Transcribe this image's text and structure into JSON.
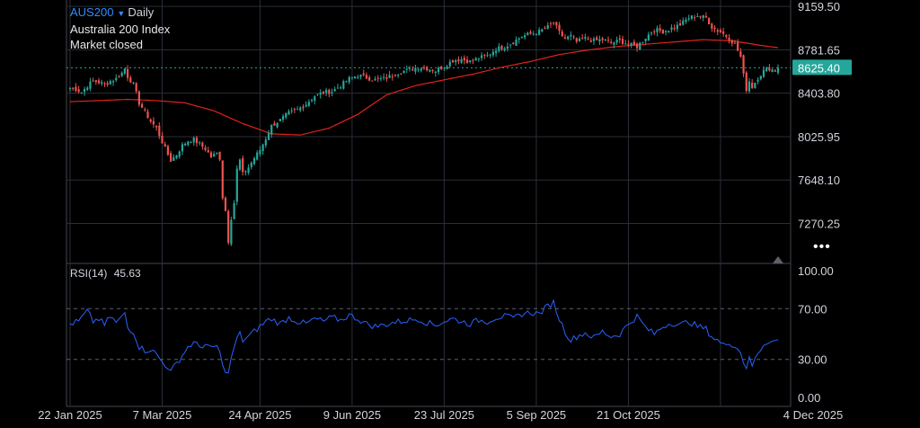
{
  "header": {
    "symbol": "AUS200",
    "timeframe": "Daily",
    "name": "Australia 200 Index",
    "status": "Market closed"
  },
  "rsi": {
    "label": "RSI(14)",
    "value": "45.63"
  },
  "colors": {
    "background": "#000000",
    "up": "#26a69a",
    "down": "#ef5350",
    "ma": "#e0231c",
    "rsi": "#2962ff",
    "price_tag": "#26a69a",
    "grid": "#2a2e39"
  },
  "icons": {
    "more": "more-dots-icon"
  },
  "chart_data": [
    {
      "type": "candlestick",
      "title": "",
      "y_ticks": [
        "9159.50",
        "8781.65",
        "8403.80",
        "8025.95",
        "7648.10",
        "7270.25"
      ],
      "ylim": [
        6930,
        9215
      ],
      "last_price": "8625.40",
      "last_price_value": 8625.4,
      "x_labels": [
        "22 Jan 2025",
        "7 Mar 2025",
        "24 Apr 2025",
        "9 Jun 2025",
        "23 Jul 2025",
        "5 Sep 2025",
        "21 Oct 2025",
        "4 Dec 2025"
      ],
      "close_anchors": [
        [
          0,
          8450
        ],
        [
          2,
          8440
        ],
        [
          4,
          8410
        ],
        [
          6,
          8470
        ],
        [
          8,
          8510
        ],
        [
          10,
          8500
        ],
        [
          12,
          8480
        ],
        [
          14,
          8510
        ],
        [
          16,
          8530
        ],
        [
          18,
          8580
        ],
        [
          19,
          8620
        ],
        [
          20,
          8550
        ],
        [
          22,
          8480
        ],
        [
          24,
          8320
        ],
        [
          26,
          8240
        ],
        [
          28,
          8160
        ],
        [
          30,
          8100
        ],
        [
          33,
          7920
        ],
        [
          35,
          7820
        ],
        [
          37,
          7870
        ],
        [
          39,
          7950
        ],
        [
          41,
          7990
        ],
        [
          43,
          8000
        ],
        [
          45,
          7960
        ],
        [
          47,
          7920
        ],
        [
          49,
          7850
        ],
        [
          51,
          7880
        ],
        [
          52,
          7840
        ],
        [
          53,
          7500
        ],
        [
          54,
          7380
        ],
        [
          55,
          7120
        ],
        [
          56,
          7320
        ],
        [
          57,
          7450
        ],
        [
          58,
          7740
        ],
        [
          59,
          7820
        ],
        [
          60,
          7700
        ],
        [
          62,
          7760
        ],
        [
          64,
          7840
        ],
        [
          66,
          7910
        ],
        [
          68,
          8010
        ],
        [
          70,
          8120
        ],
        [
          73,
          8170
        ],
        [
          76,
          8230
        ],
        [
          79,
          8260
        ],
        [
          82,
          8310
        ],
        [
          85,
          8380
        ],
        [
          88,
          8410
        ],
        [
          91,
          8420
        ],
        [
          94,
          8470
        ],
        [
          97,
          8530
        ],
        [
          100,
          8560
        ],
        [
          103,
          8540
        ],
        [
          106,
          8520
        ],
        [
          109,
          8530
        ],
        [
          112,
          8560
        ],
        [
          115,
          8590
        ],
        [
          118,
          8610
        ],
        [
          121,
          8630
        ],
        [
          124,
          8620
        ],
        [
          127,
          8600
        ],
        [
          130,
          8640
        ],
        [
          133,
          8690
        ],
        [
          136,
          8700
        ],
        [
          139,
          8680
        ],
        [
          142,
          8710
        ],
        [
          145,
          8730
        ],
        [
          148,
          8790
        ],
        [
          151,
          8810
        ],
        [
          154,
          8850
        ],
        [
          157,
          8900
        ],
        [
          160,
          8920
        ],
        [
          163,
          8940
        ],
        [
          166,
          8980
        ],
        [
          168,
          9020
        ],
        [
          170,
          8930
        ],
        [
          172,
          8880
        ],
        [
          174,
          8900
        ],
        [
          176,
          8850
        ],
        [
          179,
          8880
        ],
        [
          182,
          8860
        ],
        [
          185,
          8870
        ],
        [
          188,
          8840
        ],
        [
          191,
          8860
        ],
        [
          194,
          8830
        ],
        [
          197,
          8810
        ],
        [
          200,
          8890
        ],
        [
          203,
          8960
        ],
        [
          206,
          8940
        ],
        [
          209,
          8970
        ],
        [
          212,
          9000
        ],
        [
          215,
          9060
        ],
        [
          218,
          9080
        ],
        [
          221,
          9060
        ],
        [
          223,
          8980
        ],
        [
          225,
          8950
        ],
        [
          227,
          8920
        ],
        [
          229,
          8880
        ],
        [
          231,
          8830
        ],
        [
          233,
          8720
        ],
        [
          234,
          8560
        ],
        [
          235,
          8440
        ],
        [
          236,
          8510
        ],
        [
          237,
          8460
        ],
        [
          239,
          8540
        ],
        [
          241,
          8600
        ],
        [
          243,
          8620
        ],
        [
          245,
          8600
        ],
        [
          246,
          8625
        ]
      ],
      "ma_anchors": [
        [
          0,
          8330
        ],
        [
          20,
          8350
        ],
        [
          30,
          8340
        ],
        [
          40,
          8320
        ],
        [
          50,
          8250
        ],
        [
          60,
          8140
        ],
        [
          70,
          8050
        ],
        [
          80,
          8040
        ],
        [
          90,
          8100
        ],
        [
          100,
          8220
        ],
        [
          110,
          8390
        ],
        [
          120,
          8470
        ],
        [
          130,
          8520
        ],
        [
          140,
          8570
        ],
        [
          150,
          8630
        ],
        [
          160,
          8680
        ],
        [
          170,
          8740
        ],
        [
          180,
          8780
        ],
        [
          190,
          8810
        ],
        [
          200,
          8830
        ],
        [
          210,
          8850
        ],
        [
          220,
          8870
        ],
        [
          230,
          8860
        ],
        [
          240,
          8820
        ],
        [
          246,
          8800
        ]
      ],
      "bar_count": 247
    },
    {
      "type": "line",
      "title": "",
      "series": [
        {
          "name": "RSI(14)"
        }
      ],
      "y_ticks": [
        "100.00",
        "70.00",
        "30.00",
        "0.00"
      ],
      "ylim": [
        0,
        100
      ],
      "levels": [
        70,
        30
      ],
      "rsi_anchors": [
        [
          0,
          58
        ],
        [
          3,
          60
        ],
        [
          6,
          68
        ],
        [
          8,
          60
        ],
        [
          10,
          62
        ],
        [
          12,
          57
        ],
        [
          14,
          64
        ],
        [
          16,
          59
        ],
        [
          18,
          63
        ],
        [
          19,
          67
        ],
        [
          20,
          55
        ],
        [
          22,
          52
        ],
        [
          24,
          40
        ],
        [
          26,
          37
        ],
        [
          28,
          38
        ],
        [
          30,
          34
        ],
        [
          32,
          28
        ],
        [
          34,
          24
        ],
        [
          35,
          20
        ],
        [
          37,
          27
        ],
        [
          39,
          33
        ],
        [
          41,
          40
        ],
        [
          43,
          43
        ],
        [
          45,
          40
        ],
        [
          47,
          42
        ],
        [
          49,
          38
        ],
        [
          51,
          41
        ],
        [
          52,
          35
        ],
        [
          53,
          24
        ],
        [
          54,
          22
        ],
        [
          55,
          18
        ],
        [
          56,
          32
        ],
        [
          57,
          38
        ],
        [
          58,
          47
        ],
        [
          59,
          50
        ],
        [
          60,
          45
        ],
        [
          62,
          48
        ],
        [
          64,
          52
        ],
        [
          66,
          56
        ],
        [
          68,
          60
        ],
        [
          70,
          62
        ],
        [
          73,
          58
        ],
        [
          76,
          63
        ],
        [
          79,
          60
        ],
        [
          82,
          58
        ],
        [
          85,
          62
        ],
        [
          88,
          60
        ],
        [
          91,
          63
        ],
        [
          94,
          61
        ],
        [
          97,
          65
        ],
        [
          100,
          62
        ],
        [
          103,
          58
        ],
        [
          106,
          56
        ],
        [
          109,
          57
        ],
        [
          112,
          59
        ],
        [
          115,
          60
        ],
        [
          118,
          61
        ],
        [
          121,
          62
        ],
        [
          124,
          59
        ],
        [
          127,
          57
        ],
        [
          130,
          60
        ],
        [
          133,
          62
        ],
        [
          136,
          60
        ],
        [
          139,
          58
        ],
        [
          142,
          61
        ],
        [
          145,
          60
        ],
        [
          148,
          63
        ],
        [
          151,
          64
        ],
        [
          154,
          62
        ],
        [
          157,
          66
        ],
        [
          160,
          67
        ],
        [
          163,
          66
        ],
        [
          166,
          72
        ],
        [
          168,
          75
        ],
        [
          170,
          62
        ],
        [
          172,
          52
        ],
        [
          174,
          45
        ],
        [
          176,
          48
        ],
        [
          179,
          51
        ],
        [
          182,
          47
        ],
        [
          185,
          52
        ],
        [
          188,
          48
        ],
        [
          191,
          50
        ],
        [
          194,
          58
        ],
        [
          197,
          64
        ],
        [
          200,
          55
        ],
        [
          203,
          50
        ],
        [
          206,
          56
        ],
        [
          209,
          59
        ],
        [
          212,
          57
        ],
        [
          215,
          60
        ],
        [
          218,
          56
        ],
        [
          221,
          54
        ],
        [
          223,
          48
        ],
        [
          225,
          45
        ],
        [
          227,
          41
        ],
        [
          229,
          44
        ],
        [
          231,
          40
        ],
        [
          233,
          36
        ],
        [
          234,
          28
        ],
        [
          235,
          24
        ],
        [
          236,
          30
        ],
        [
          237,
          25
        ],
        [
          239,
          35
        ],
        [
          241,
          42
        ],
        [
          243,
          45
        ],
        [
          245,
          44
        ],
        [
          246,
          45.63
        ]
      ]
    }
  ]
}
